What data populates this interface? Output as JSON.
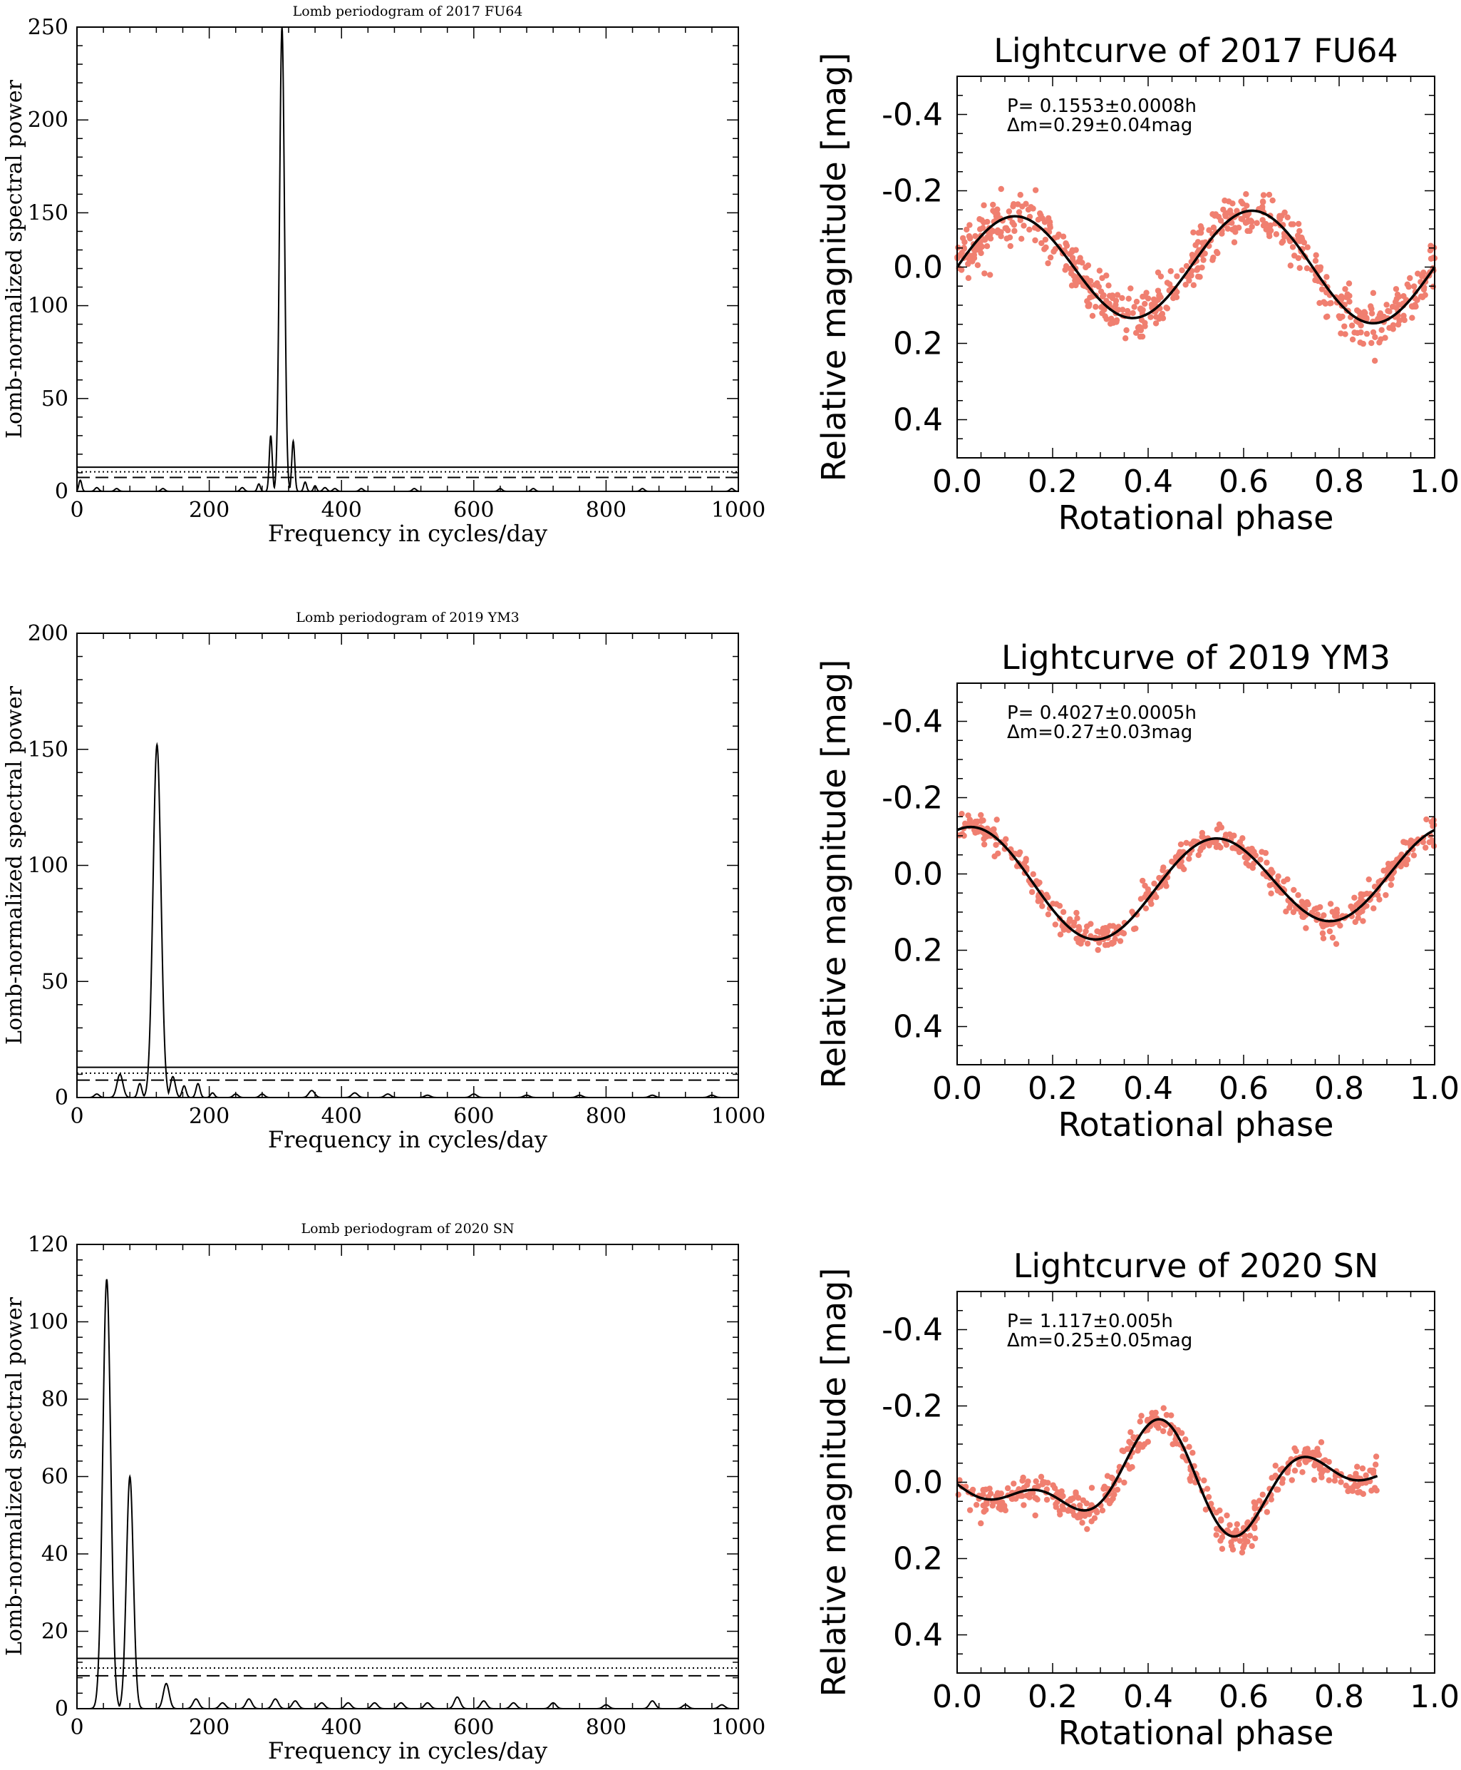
{
  "chart_data": [
    {
      "type": "line",
      "panel": "periodogram",
      "title": "Lomb periodogram of 2017 FU64",
      "xlabel": "Frequency in cycles/day",
      "ylabel": "Lomb-normalized spectral power",
      "xlim": [
        0,
        1000
      ],
      "ylim": [
        0,
        250
      ],
      "xticks": [
        0,
        200,
        400,
        600,
        800,
        1000
      ],
      "yticks": [
        0,
        50,
        100,
        150,
        200,
        250
      ],
      "series": [
        {
          "peaks": [
            [
              310,
              250,
              5
            ],
            [
              293,
              30,
              3
            ],
            [
              327,
              27,
              3
            ],
            [
              5,
              6,
              3
            ],
            [
              275,
              4,
              3
            ],
            [
              345,
              5,
              3
            ],
            [
              360,
              3,
              3
            ],
            [
              30,
              2,
              4
            ],
            [
              60,
              1.5,
              4
            ],
            [
              130,
              1.5,
              4
            ],
            [
              250,
              2,
              4
            ],
            [
              375,
              2,
              4
            ],
            [
              390,
              1.5,
              4
            ],
            [
              430,
              1.5,
              4
            ],
            [
              510,
              1.5,
              4
            ],
            [
              640,
              1.5,
              4
            ],
            [
              690,
              1.5,
              4
            ],
            [
              855,
              1.5,
              4
            ],
            [
              990,
              1.5,
              4
            ]
          ]
        }
      ],
      "significance_levels": {
        "solid": 13,
        "dotted": 10.5,
        "dashed": 7.5
      },
      "grid": false,
      "legend": "none"
    },
    {
      "type": "scatter",
      "panel": "lightcurve",
      "title": "Lightcurve of 2017 FU64",
      "xlabel": "Rotational phase",
      "ylabel": "Relative magnitude [mag]",
      "xlim": [
        0.0,
        1.0
      ],
      "ylim": [
        0.5,
        -0.5
      ],
      "xticks": [
        "0.0",
        "0.2",
        "0.4",
        "0.6",
        "0.8",
        "1.0"
      ],
      "yticks": [
        "-0.4",
        "-0.2",
        "0.0",
        "0.2",
        "0.4"
      ],
      "annotation_period": "P= 0.1553±0.0008h",
      "annotation_amplitude": "Δm=0.29±0.04mag",
      "fit_coeffs": {
        "c": 0.0,
        "a1": 0.01,
        "b1": 0.0,
        "a2": -0.01,
        "b2": -0.14
      },
      "scatter": {
        "n": 620,
        "x_max": 1.0,
        "noise": 0.035,
        "seed": 11
      },
      "point_color": "#f07f70",
      "line_color": "#000000"
    },
    {
      "type": "line",
      "panel": "periodogram",
      "title": "Lomb periodogram of 2019 YM3",
      "xlabel": "Frequency in cycles/day",
      "ylabel": "Lomb-normalized spectral power",
      "xlim": [
        0,
        1000
      ],
      "ylim": [
        0,
        200
      ],
      "xticks": [
        0,
        200,
        400,
        600,
        800,
        1000
      ],
      "yticks": [
        0,
        50,
        100,
        150,
        200
      ],
      "series": [
        {
          "peaks": [
            [
              121,
              152,
              8
            ],
            [
              65,
              10,
              6
            ],
            [
              95,
              6,
              4
            ],
            [
              145,
              9,
              5
            ],
            [
              162,
              5,
              4
            ],
            [
              183,
              6,
              4
            ],
            [
              205,
              2,
              4
            ],
            [
              240,
              1.5,
              5
            ],
            [
              280,
              1.5,
              5
            ],
            [
              355,
              3,
              6
            ],
            [
              420,
              2,
              6
            ],
            [
              470,
              1.5,
              6
            ],
            [
              530,
              1,
              6
            ],
            [
              600,
              1.5,
              6
            ],
            [
              680,
              1,
              6
            ],
            [
              760,
              1,
              6
            ],
            [
              870,
              1,
              6
            ],
            [
              960,
              1,
              6
            ],
            [
              30,
              1.5,
              5
            ]
          ]
        }
      ],
      "significance_levels": {
        "solid": 13,
        "dotted": 10.5,
        "dashed": 7.5
      },
      "grid": false,
      "legend": "none"
    },
    {
      "type": "scatter",
      "panel": "lightcurve",
      "title": "Lightcurve of 2019 YM3",
      "xlabel": "Rotational phase",
      "ylabel": "Relative magnitude [mag]",
      "xlim": [
        0.0,
        1.0
      ],
      "ylim": [
        0.5,
        -0.5
      ],
      "xticks": [
        "0.0",
        "0.2",
        "0.4",
        "0.6",
        "0.8",
        "1.0"
      ],
      "yticks": [
        "-0.4",
        "-0.2",
        "0.0",
        "0.2",
        "0.4"
      ],
      "annotation_period": "P= 0.4027±0.0005h",
      "annotation_amplitude": "Δm=0.27±0.03mag",
      "fit_coeffs": {
        "c": 0.02,
        "a1": -0.02,
        "b1": 0.02,
        "a2": -0.115,
        "b2": -0.055
      },
      "scatter": {
        "n": 480,
        "x_max": 1.0,
        "noise": 0.018,
        "seed": 23
      },
      "point_color": "#f07f70",
      "line_color": "#000000"
    },
    {
      "type": "line",
      "panel": "periodogram",
      "title": "Lomb periodogram of 2020 SN",
      "xlabel": "Frequency in cycles/day",
      "ylabel": "Lomb-normalized spectral power",
      "xlim": [
        0,
        1000
      ],
      "ylim": [
        0,
        120
      ],
      "xticks": [
        0,
        200,
        400,
        600,
        800,
        1000
      ],
      "yticks": [
        0,
        20,
        40,
        60,
        80,
        100,
        120
      ],
      "series": [
        {
          "peaks": [
            [
              45,
              111,
              8
            ],
            [
              80,
              60,
              7
            ],
            [
              135,
              6.5,
              6
            ],
            [
              180,
              2.5,
              6
            ],
            [
              220,
              1.5,
              6
            ],
            [
              260,
              2.5,
              6
            ],
            [
              300,
              2.5,
              6
            ],
            [
              330,
              2,
              6
            ],
            [
              370,
              1.5,
              6
            ],
            [
              410,
              1.5,
              6
            ],
            [
              450,
              1.5,
              6
            ],
            [
              490,
              1.5,
              6
            ],
            [
              530,
              1.5,
              6
            ],
            [
              575,
              3,
              6
            ],
            [
              615,
              2,
              6
            ],
            [
              660,
              1.5,
              6
            ],
            [
              720,
              1.5,
              6
            ],
            [
              800,
              1,
              6
            ],
            [
              870,
              2,
              6
            ],
            [
              920,
              1,
              6
            ],
            [
              975,
              1,
              6
            ]
          ]
        }
      ],
      "significance_levels": {
        "solid": 13,
        "dotted": 10.5,
        "dashed": 8.5
      },
      "grid": false,
      "legend": "none"
    },
    {
      "type": "scatter",
      "panel": "lightcurve",
      "title": "Lightcurve of 2020 SN",
      "xlabel": "Rotational phase",
      "ylabel": "Relative magnitude [mag]",
      "xlim": [
        0.0,
        1.0
      ],
      "ylim": [
        0.5,
        -0.5
      ],
      "xticks": [
        "0.0",
        "0.2",
        "0.4",
        "0.6",
        "0.8",
        "1.0"
      ],
      "yticks": [
        "-0.4",
        "-0.2",
        "0.0",
        "0.2",
        "0.4"
      ],
      "annotation_period": "P= 1.117±0.005h",
      "annotation_amplitude": "Δm=0.25±0.05mag",
      "fit_coeffs": {
        "c": 0.0,
        "a1": 0.01,
        "b1": 0.005,
        "a2": -0.005,
        "b2": 0.06,
        "a3": 0.0,
        "b3": -0.06,
        "a4": 0.0,
        "b4": 0.05
      },
      "scatter": {
        "n": 430,
        "x_max": 0.88,
        "noise": 0.022,
        "seed": 37
      },
      "point_color": "#f07f70",
      "line_color": "#000000"
    }
  ]
}
